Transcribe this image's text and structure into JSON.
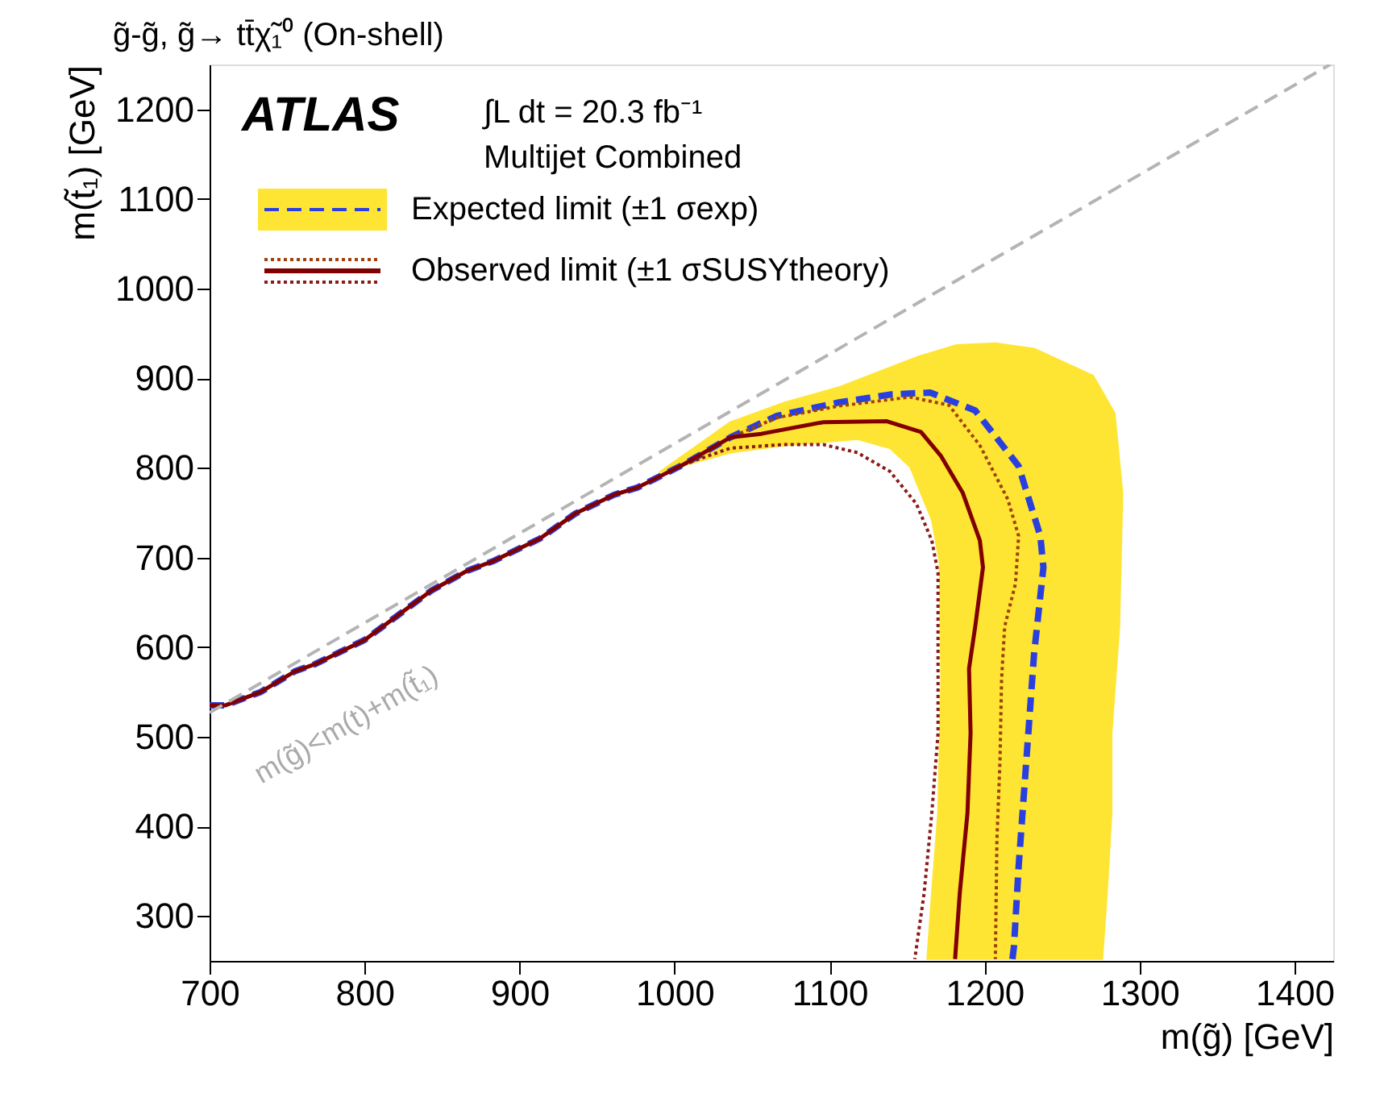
{
  "chart_data": {
    "type": "line",
    "title": "g̃-g̃, g̃→ tt̄χ̃₁⁰ (On-shell)",
    "xlabel": "m(g̃) [GeV]",
    "ylabel": "m(t̃₁) [GeV]",
    "xlim": [
      700,
      1425
    ],
    "ylim": [
      250,
      1250
    ],
    "xticks": [
      700,
      800,
      900,
      1000,
      1100,
      1200,
      1300,
      1400
    ],
    "yticks": [
      300,
      400,
      500,
      600,
      700,
      800,
      900,
      1000,
      1100,
      1200
    ],
    "grid": false,
    "legend": "top left",
    "annotations": [
      "ATLAS",
      "∫L dt = 20.3 fb⁻¹",
      "Multijet Combined",
      "m(g̃)<m(t)+m(t̃₁)"
    ],
    "series": [
      {
        "type": "area",
        "color": "#ffe533",
        "x": [
          990,
          1036,
          1071,
          1106,
          1157,
          1182,
          1207,
          1232,
          1270,
          1284,
          1289,
          1287,
          1282,
          1282,
          1279,
          1276,
          1163,
          1166,
          1170,
          1172,
          1171,
          1166,
          1152,
          1139,
          1118,
          1071,
          1036,
          990
        ],
        "values": [
          795,
          851,
          873,
          890,
          924,
          937,
          939,
          933,
          903,
          861,
          772,
          623,
          504,
          415,
          325,
          252,
          252,
          325,
          415,
          564,
          695,
          742,
          801,
          822,
          832,
          825,
          817,
          795
        ]
      },
      {
        "name": "Expected limit (±1 σexp)",
        "color": "#2a3fe0",
        "line_style": "dashed",
        "x": [
          700,
          710,
          733,
          755,
          768,
          800,
          843,
          866,
          883,
          913,
          936,
          961,
          976,
          1006,
          1036,
          1066,
          1106,
          1140,
          1165,
          1194,
          1222,
          1236,
          1238,
          1232,
          1227,
          1222,
          1219,
          1218
        ],
        "values": [
          535,
          535,
          550,
          573,
          581,
          608,
          663,
          685,
          696,
          721,
          749,
          770,
          778,
          804,
          834,
          858,
          873,
          882,
          884,
          864,
          802,
          724,
          689,
          593,
          474,
          355,
          266,
          252
        ]
      },
      {
        "color": "#a0400a",
        "line_style": "dotted",
        "x": [
          1006,
          1036,
          1066,
          1106,
          1152,
          1177,
          1197,
          1215,
          1222,
          1220,
          1213,
          1211,
          1210,
          1208,
          1207
        ],
        "values": [
          804,
          834,
          856,
          869,
          879,
          870,
          825,
          765,
          724,
          671,
          623,
          564,
          474,
          385,
          252
        ]
      },
      {
        "color": "#8b1a1a",
        "line_style": "dotted",
        "x": [
          1006,
          1036,
          1071,
          1096,
          1118,
          1139,
          1156,
          1166,
          1170,
          1170,
          1170,
          1166,
          1161,
          1155
        ],
        "values": [
          804,
          822,
          826,
          826,
          817,
          796,
          760,
          719,
          683,
          594,
          504,
          415,
          325,
          252
        ]
      },
      {
        "name": "Observed limit (±1 σSUSYtheory)",
        "color": "#800000",
        "line_style": "solid",
        "x": [
          700,
          710,
          733,
          755,
          768,
          800,
          843,
          866,
          883,
          913,
          936,
          961,
          976,
          1006,
          1036,
          1056,
          1096,
          1137,
          1159,
          1172,
          1186,
          1197,
          1199,
          1194,
          1190,
          1191,
          1189,
          1184,
          1181
        ],
        "values": [
          535,
          535,
          550,
          573,
          581,
          608,
          663,
          685,
          696,
          721,
          749,
          770,
          778,
          804,
          834,
          838,
          851,
          852,
          840,
          813,
          772,
          719,
          689,
          623,
          576,
          504,
          415,
          325,
          252
        ]
      },
      {
        "color": "#b4b4b4",
        "line_style": "dashed",
        "x": [
          700,
          1423
        ],
        "values": [
          527,
          1250
        ]
      }
    ]
  }
}
